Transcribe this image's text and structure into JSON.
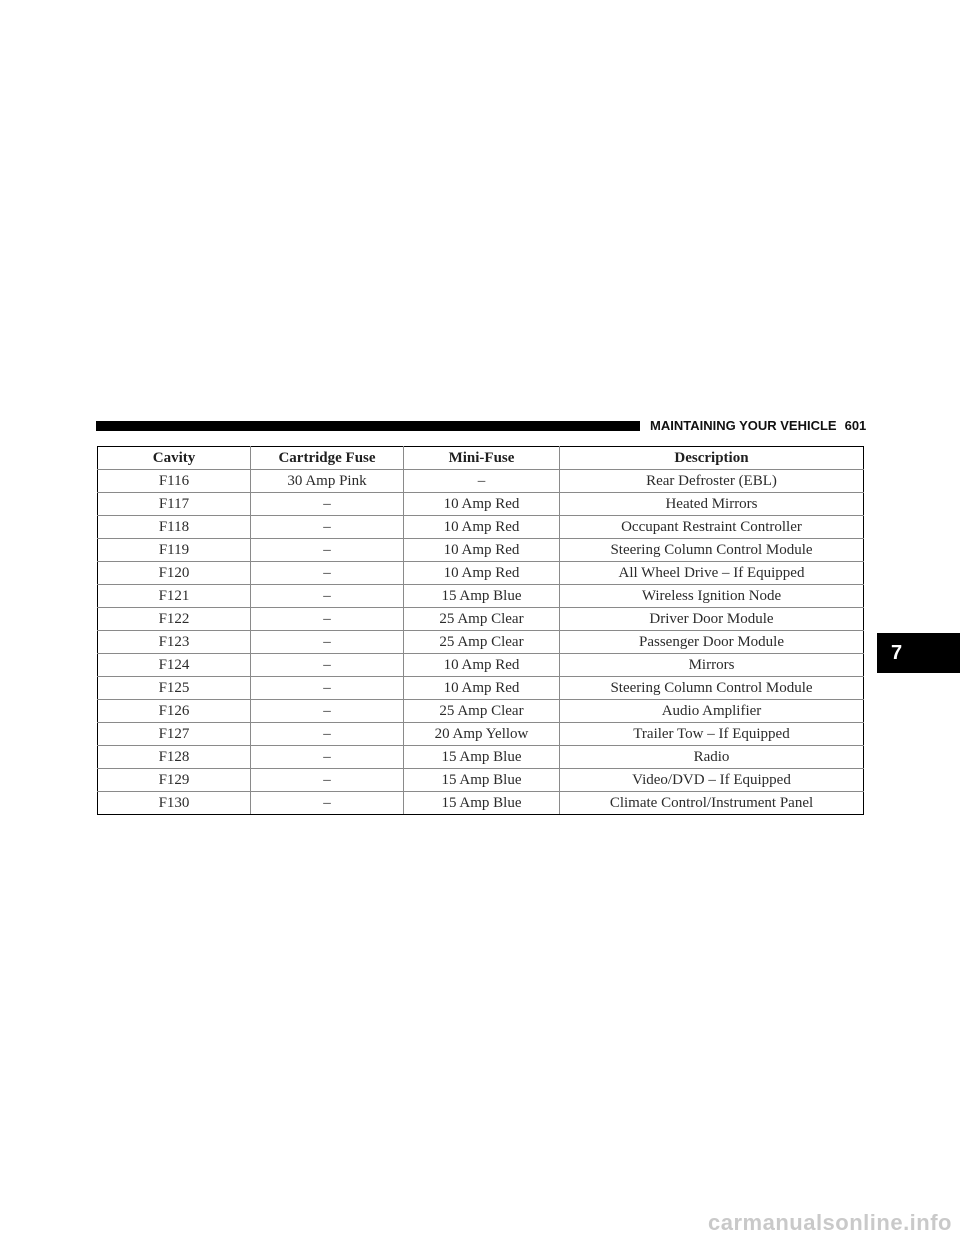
{
  "header": {
    "section_title": "MAINTAINING YOUR VEHICLE",
    "page_number": "601"
  },
  "table": {
    "columns": [
      "Cavity",
      "Cartridge Fuse",
      "Mini-Fuse",
      "Description"
    ],
    "rows": [
      [
        "F116",
        "30 Amp Pink",
        "–",
        "Rear Defroster (EBL)"
      ],
      [
        "F117",
        "–",
        "10 Amp Red",
        "Heated Mirrors"
      ],
      [
        "F118",
        "–",
        "10 Amp Red",
        "Occupant Restraint Controller"
      ],
      [
        "F119",
        "–",
        "10 Amp Red",
        "Steering Column Control Module"
      ],
      [
        "F120",
        "–",
        "10 Amp Red",
        "All Wheel Drive – If Equipped"
      ],
      [
        "F121",
        "–",
        "15 Amp Blue",
        "Wireless Ignition Node"
      ],
      [
        "F122",
        "–",
        "25 Amp Clear",
        "Driver Door Module"
      ],
      [
        "F123",
        "–",
        "25 Amp Clear",
        "Passenger Door Module"
      ],
      [
        "F124",
        "–",
        "10 Amp Red",
        "Mirrors"
      ],
      [
        "F125",
        "–",
        "10 Amp Red",
        "Steering Column Control Module"
      ],
      [
        "F126",
        "–",
        "25 Amp Clear",
        "Audio Amplifier"
      ],
      [
        "F127",
        "–",
        "20 Amp Yellow",
        "Trailer Tow – If Equipped"
      ],
      [
        "F128",
        "–",
        "15 Amp Blue",
        "Radio"
      ],
      [
        "F129",
        "–",
        "15 Amp Blue",
        "Video/DVD – If Equipped"
      ],
      [
        "F130",
        "–",
        "15 Amp Blue",
        "Climate Control/Instrument Panel"
      ]
    ]
  },
  "chapter_tab": {
    "label": "7"
  },
  "watermark": {
    "text": "carmanualsonline.info"
  }
}
